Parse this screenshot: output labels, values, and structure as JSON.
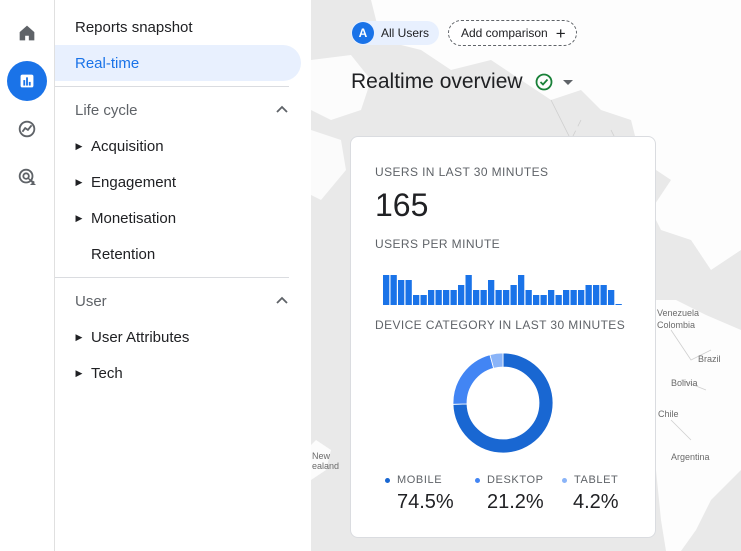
{
  "rail": {
    "items": [
      {
        "icon": "home-icon"
      },
      {
        "icon": "reports-icon"
      },
      {
        "icon": "explore-icon"
      },
      {
        "icon": "advertising-icon"
      }
    ]
  },
  "nav": {
    "reports_snapshot": "Reports snapshot",
    "realtime": "Real-time",
    "lifecycle": {
      "title": "Life cycle",
      "items": [
        "Acquisition",
        "Engagement",
        "Monetisation",
        "Retention"
      ]
    },
    "user": {
      "title": "User",
      "items": [
        "User Attributes",
        "Tech"
      ]
    }
  },
  "filters": {
    "segment_badge": "A",
    "segment_label": "All Users",
    "add_comparison": "Add comparison",
    "plus": "+"
  },
  "page": {
    "title": "Realtime overview"
  },
  "card": {
    "users_label": "USERS IN LAST 30 MINUTES",
    "users_value": "165",
    "per_minute_label": "USERS PER MINUTE",
    "per_minute_values": [
      6,
      6,
      5,
      5,
      2,
      2,
      3,
      3,
      3,
      3,
      4,
      6,
      3,
      3,
      5,
      3,
      3,
      4,
      6,
      3,
      2,
      2,
      3,
      2,
      3,
      3,
      3,
      4,
      4,
      4,
      3,
      0
    ],
    "device_label": "DEVICE CATEGORY IN LAST 30 MINUTES",
    "devices": [
      {
        "name": "MOBILE",
        "pct": "74.5%",
        "value": 74.5,
        "color": "#1967d2"
      },
      {
        "name": "DESKTOP",
        "pct": "21.2%",
        "value": 21.2,
        "color": "#4285f4"
      },
      {
        "name": "TABLET",
        "pct": "4.2%",
        "value": 4.2,
        "color": "#8ab4f8"
      }
    ]
  },
  "map_labels": [
    "Venezuela",
    "Colombia",
    "Brazil",
    "Bolivia",
    "Chile",
    "Argentina",
    "New",
    "ealand"
  ],
  "colors": {
    "accent": "#1a73e8",
    "active_nav_bg": "#e8f0fe",
    "bar": "#1a73e8",
    "check": "#188038"
  }
}
